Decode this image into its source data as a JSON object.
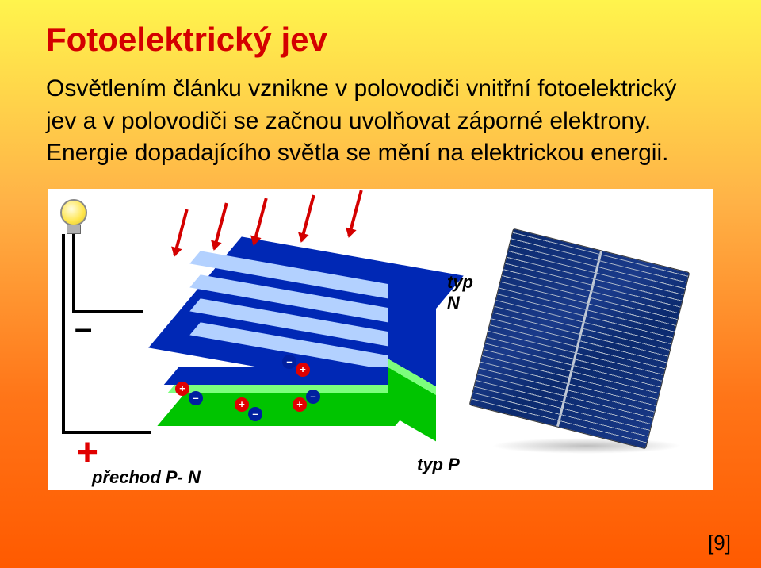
{
  "title": "Fotoelektrický jev",
  "body": "Osvětlením článku vznikne v polovodiči vnitřní fotoelektrický jev a v polovodiči se začnou uvolňovat záporné elektrony. Energie dopadajícího světla se mění na elektrickou energii.",
  "labels": {
    "typ_n": "typ N",
    "typ_p": "typ P",
    "prechod": "přechod P- N",
    "minus": "–",
    "plus": "+"
  },
  "colors": {
    "title": "#d40000",
    "bg_top": "#fff44d",
    "bg_bottom": "#ff5a00",
    "n_layer": "#0028b5",
    "p_layer": "#00c400",
    "junction": "#7cff7c",
    "arrow": "#d40000",
    "grid_line": "#b3d1ff",
    "cell_color": "#0b2a6e",
    "plus_color": "#e00000",
    "white": "#ffffff"
  },
  "diagram": {
    "type": "infographic",
    "arrows_count": 5,
    "layers": [
      "N",
      "junction",
      "P"
    ],
    "charges": [
      {
        "sign": "+",
        "color": "#e00000"
      },
      {
        "sign": "–",
        "color": "#0020a0"
      },
      {
        "sign": "+",
        "color": "#e00000"
      },
      {
        "sign": "–",
        "color": "#0020a0"
      },
      {
        "sign": "–",
        "color": "#0020a0"
      },
      {
        "sign": "+",
        "color": "#e00000"
      },
      {
        "sign": "–",
        "color": "#0020a0"
      },
      {
        "sign": "+",
        "color": "#e00000"
      }
    ]
  },
  "citation": "[9]"
}
